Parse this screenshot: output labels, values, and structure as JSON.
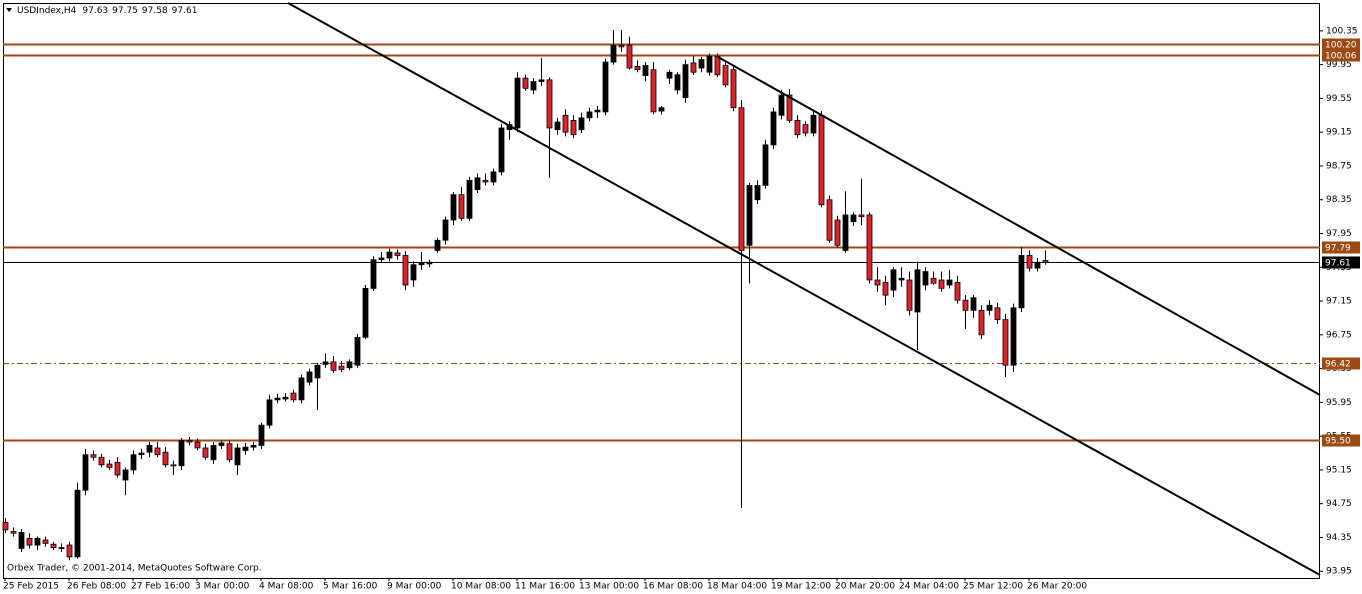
{
  "chart_data": {
    "type": "candlestick",
    "title": "USDIndex,H4",
    "footer": "Orbex Trader, © 2001-2014, MetaQuotes Software Corp.",
    "categories": [
      "25 Feb 2015",
      null,
      null,
      null,
      null,
      null,
      null,
      null,
      "26 Feb 08:00",
      null,
      null,
      null,
      null,
      null,
      null,
      null,
      "27 Feb 16:00",
      null,
      null,
      null,
      null,
      null,
      null,
      null,
      "3 Mar 00:00",
      null,
      null,
      null,
      null,
      null,
      null,
      null,
      "4 Mar 08:00",
      null,
      null,
      null,
      null,
      null,
      null,
      null,
      "5 Mar 16:00",
      null,
      null,
      null,
      null,
      null,
      null,
      null,
      "9 Mar 00:00",
      null,
      null,
      null,
      null,
      null,
      null,
      null,
      "10 Mar 08:00",
      null,
      null,
      null,
      null,
      null,
      null,
      null,
      "11 Mar 16:00",
      null,
      null,
      null,
      null,
      null,
      null,
      null,
      "13 Mar 00:00",
      null,
      null,
      null,
      null,
      null,
      null,
      null,
      "16 Mar 08:00",
      null,
      null,
      null,
      null,
      null,
      null,
      null,
      "18 Mar 04:00",
      null,
      null,
      null,
      null,
      null,
      null,
      null,
      "19 Mar 12:00",
      null,
      null,
      null,
      null,
      null,
      null,
      null,
      "20 Mar 20:00",
      null,
      null,
      null,
      null,
      null,
      null,
      null,
      "24 Mar 04:00",
      null,
      null,
      null,
      null,
      null,
      null,
      null,
      "25 Mar 12:00",
      null,
      null,
      null,
      null,
      null,
      null,
      null,
      "26 Mar 20:00",
      null,
      null
    ],
    "open": [
      94.53,
      94.42,
      94.22,
      94.34,
      94.26,
      94.32,
      94.27,
      94.23,
      94.26,
      94.12,
      94.91,
      95.33,
      95.3,
      95.22,
      95.24,
      95.03,
      95.15,
      95.33,
      95.36,
      95.41,
      95.36,
      95.21,
      95.2,
      95.5,
      95.48,
      95.41,
      95.27,
      95.44,
      95.46,
      95.21,
      95.38,
      95.42,
      95.44,
      95.68,
      95.98,
      95.99,
      96.06,
      95.98,
      96.19,
      96.24,
      96.4,
      96.43,
      96.38,
      96.36,
      96.39,
      96.72,
      97.3,
      97.64,
      97.66,
      97.72,
      97.69,
      97.4,
      97.58,
      97.59,
      97.75,
      97.87,
      98.11,
      98.41,
      98.13,
      98.47,
      98.58,
      98.56,
      98.68,
      99.18,
      99.2,
      99.79,
      99.65,
      99.75,
      99.77,
      99.18,
      99.35,
      99.29,
      99.18,
      99.32,
      99.39,
      99.39,
      99.98,
      100.18,
      100.18,
      99.93,
      99.82,
      99.89,
      99.4,
      99.79,
      99.65,
      99.56,
      99.97,
      99.91,
      99.86,
      100.05,
      99.94,
      99.89,
      99.44,
      97.81,
      98.35,
      98.52,
      99.0,
      99.35,
      99.59,
      99.29,
      99.24,
      99.14,
      99.35,
      98.35,
      98.11,
      97.75,
      98.09,
      98.17,
      98.17,
      97.4,
      97.37,
      97.28,
      97.4,
      97.4,
      97.02,
      97.34,
      97.42,
      97.4,
      97.34,
      97.37,
      97.16,
      97.04,
      97.04,
      97.04,
      97.07,
      96.93,
      96.39,
      97.07,
      97.69,
      97.54,
      97.63
    ],
    "high": [
      94.58,
      94.47,
      94.45,
      94.4,
      94.36,
      94.36,
      94.3,
      94.28,
      94.3,
      95.0,
      95.4,
      95.38,
      95.34,
      95.27,
      95.3,
      95.18,
      95.38,
      95.4,
      95.48,
      95.48,
      95.42,
      95.26,
      95.53,
      95.54,
      95.52,
      95.46,
      95.48,
      95.5,
      95.5,
      95.46,
      95.47,
      95.48,
      95.71,
      96.04,
      96.05,
      96.06,
      96.1,
      96.28,
      96.35,
      96.42,
      96.53,
      96.5,
      96.44,
      96.46,
      96.76,
      97.34,
      97.68,
      97.73,
      97.77,
      97.76,
      97.74,
      97.62,
      97.73,
      97.64,
      97.9,
      98.15,
      98.44,
      98.5,
      98.62,
      98.66,
      98.66,
      98.72,
      99.25,
      99.28,
      99.86,
      99.83,
      99.79,
      100.03,
      99.8,
      99.32,
      99.42,
      99.35,
      99.38,
      99.44,
      99.46,
      100.02,
      100.36,
      100.36,
      100.28,
      100.0,
      99.98,
      99.98,
      99.46,
      99.89,
      99.86,
      100.01,
      100.05,
      100.04,
      100.08,
      100.08,
      99.98,
      99.95,
      99.53,
      98.55,
      98.58,
      99.06,
      99.44,
      99.65,
      99.66,
      99.35,
      99.28,
      99.42,
      99.4,
      98.4,
      98.16,
      98.45,
      98.2,
      98.6,
      98.2,
      97.55,
      97.45,
      97.55,
      97.55,
      97.5,
      97.62,
      97.55,
      97.5,
      97.5,
      97.52,
      97.45,
      97.22,
      97.22,
      97.1,
      97.16,
      97.13,
      97.0,
      97.12,
      97.79,
      97.75,
      97.66,
      97.75
    ],
    "low": [
      94.4,
      94.36,
      94.18,
      94.22,
      94.2,
      94.24,
      94.2,
      94.18,
      94.08,
      94.1,
      94.85,
      95.26,
      95.18,
      95.15,
      95.06,
      94.85,
      95.1,
      95.28,
      95.3,
      95.3,
      95.18,
      95.09,
      95.15,
      95.44,
      95.38,
      95.27,
      95.22,
      95.4,
      95.24,
      95.09,
      95.33,
      95.38,
      95.4,
      95.64,
      95.94,
      95.96,
      95.95,
      95.94,
      96.15,
      95.86,
      96.36,
      96.3,
      96.31,
      96.33,
      96.36,
      96.7,
      97.27,
      97.6,
      97.62,
      97.64,
      97.28,
      97.32,
      97.52,
      97.55,
      97.72,
      97.82,
      98.05,
      98.1,
      98.1,
      98.43,
      98.52,
      98.52,
      98.64,
      99.06,
      99.15,
      99.64,
      99.6,
      99.7,
      98.61,
      99.12,
      99.1,
      99.08,
      99.14,
      99.28,
      99.32,
      99.35,
      99.95,
      100.1,
      99.89,
      99.86,
      99.75,
      99.36,
      99.36,
      99.72,
      99.6,
      99.5,
      99.83,
      99.86,
      99.82,
      99.8,
      99.68,
      99.4,
      94.7,
      97.36,
      98.3,
      98.48,
      98.95,
      99.3,
      99.26,
      99.08,
      99.1,
      99.1,
      98.26,
      97.84,
      97.78,
      97.72,
      98.04,
      98.05,
      97.36,
      97.26,
      97.1,
      97.2,
      97.32,
      96.98,
      96.57,
      97.28,
      97.34,
      97.26,
      97.3,
      97.12,
      96.82,
      96.95,
      96.7,
      96.98,
      96.88,
      96.25,
      96.31,
      97.02,
      97.5,
      97.5,
      97.58
    ],
    "close": [
      94.44,
      94.4,
      94.41,
      94.26,
      94.34,
      94.28,
      94.23,
      94.22,
      94.12,
      94.91,
      95.33,
      95.3,
      95.21,
      95.18,
      95.09,
      95.15,
      95.33,
      95.35,
      95.44,
      95.33,
      95.21,
      95.2,
      95.5,
      95.48,
      95.41,
      95.3,
      95.44,
      95.47,
      95.27,
      95.41,
      95.42,
      95.44,
      95.68,
      95.98,
      96.0,
      96.01,
      95.98,
      96.24,
      96.31,
      96.39,
      96.43,
      96.33,
      96.34,
      96.43,
      96.72,
      97.3,
      97.64,
      97.66,
      97.73,
      97.69,
      97.34,
      97.58,
      97.6,
      97.61,
      97.87,
      98.11,
      98.41,
      98.13,
      98.58,
      98.61,
      98.56,
      98.68,
      99.2,
      99.24,
      99.79,
      99.67,
      99.75,
      99.77,
      99.2,
      99.27,
      99.15,
      99.12,
      99.32,
      99.39,
      99.41,
      99.98,
      100.18,
      100.16,
      99.91,
      99.89,
      99.94,
      99.39,
      99.44,
      99.86,
      99.83,
      99.95,
      99.86,
      100.01,
      100.05,
      99.83,
      99.71,
      99.44,
      97.75,
      98.52,
      98.52,
      99.0,
      99.39,
      99.59,
      99.29,
      99.12,
      99.14,
      99.35,
      98.29,
      97.87,
      97.81,
      98.17,
      98.17,
      98.15,
      97.4,
      97.34,
      97.22,
      97.52,
      97.42,
      97.04,
      97.52,
      97.5,
      97.36,
      97.3,
      97.4,
      97.16,
      97.04,
      97.19,
      96.75,
      97.1,
      96.93,
      96.39,
      97.07,
      97.69,
      97.54,
      97.61,
      97.61
    ],
    "up_color": "#000000",
    "down_color": "#e0232b",
    "ylim": [
      93.87,
      100.68
    ],
    "yticks": [
      100.35,
      99.95,
      99.55,
      99.15,
      98.75,
      98.35,
      97.95,
      97.55,
      97.15,
      96.75,
      96.35,
      95.95,
      95.55,
      95.15,
      94.75,
      94.35,
      93.95
    ],
    "levels": [
      {
        "value": 100.2,
        "label": "100.20",
        "color": "#9c4a12",
        "dashed": false
      },
      {
        "value": 100.06,
        "label": "100.06",
        "color": "#9c4a12",
        "dashed": false
      },
      {
        "value": 97.79,
        "label": "97.79",
        "color": "#9c4a12",
        "dashed": false
      },
      {
        "value": 97.61,
        "label": "97.61",
        "color": "#000000",
        "dashed": false
      },
      {
        "value": 96.42,
        "label": "96.42",
        "color": "#9c4a12",
        "dashed": true
      },
      {
        "value": 95.5,
        "label": "95.50",
        "color": "#9c4a12",
        "dashed": false
      }
    ]
  }
}
